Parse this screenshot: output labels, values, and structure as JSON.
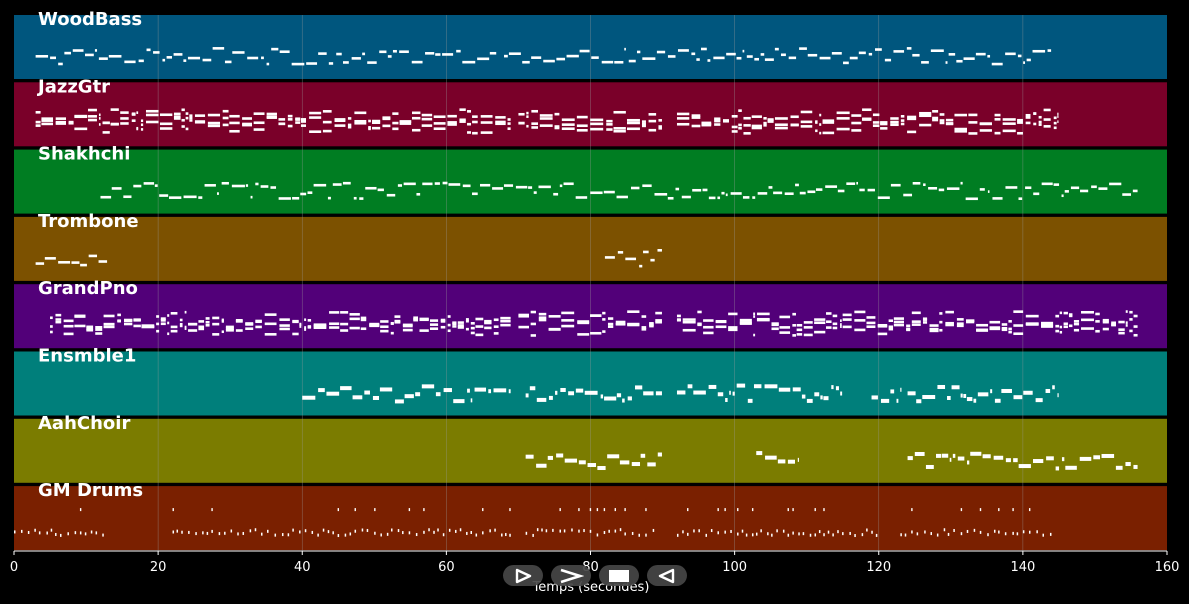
{
  "colors": {
    "background": "#000000",
    "note": "#ffffff",
    "grid": "#9a9a9a"
  },
  "tracks": [
    {
      "name": "WoodBass",
      "color": "#00567e"
    },
    {
      "name": "JazzGtr",
      "color": "#7a0029"
    },
    {
      "name": "Shakhchi",
      "color": "#007d22"
    },
    {
      "name": "Trombone",
      "color": "#7c5100"
    },
    {
      "name": "GrandPno",
      "color": "#520079"
    },
    {
      "name": "Ensmble1",
      "color": "#007f7b"
    },
    {
      "name": "AahChoir",
      "color": "#7b7c00"
    },
    {
      "name": "GM Drums",
      "color": "#7a2000"
    }
  ],
  "chart_data": {
    "type": "piano-roll",
    "xlabel": "Temps (secondes)",
    "xlim": [
      0,
      160
    ],
    "xticks": [
      0,
      20,
      40,
      60,
      80,
      100,
      120,
      140,
      160
    ],
    "grid": true,
    "series": [
      {
        "name": "WoodBass",
        "segments": [
          [
            3,
            67
          ],
          [
            68,
            144
          ]
        ]
      },
      {
        "name": "JazzGtr",
        "segments": [
          [
            3,
            69
          ],
          [
            70,
            90
          ],
          [
            92,
            145
          ]
        ]
      },
      {
        "name": "Shakhchi",
        "segments": [
          [
            12,
            156
          ]
        ]
      },
      {
        "name": "Trombone",
        "segments": [
          [
            3,
            13
          ],
          [
            82,
            90
          ]
        ]
      },
      {
        "name": "GrandPno",
        "segments": [
          [
            5,
            69
          ],
          [
            70,
            90
          ],
          [
            92,
            156
          ]
        ]
      },
      {
        "name": "Ensmble1",
        "segments": [
          [
            40,
            69
          ],
          [
            71,
            90
          ],
          [
            92,
            115
          ],
          [
            119,
            123
          ],
          [
            124,
            145
          ]
        ]
      },
      {
        "name": "AahChoir",
        "segments": [
          [
            71,
            90
          ],
          [
            103,
            109
          ],
          [
            124,
            156
          ]
        ]
      },
      {
        "name": "GM Drums",
        "segments": [
          [
            0,
            13
          ],
          [
            22,
            69
          ],
          [
            71,
            89
          ],
          [
            92,
            120
          ],
          [
            123,
            144
          ]
        ]
      }
    ]
  },
  "transport": {
    "play_icon": "play-icon",
    "forward_icon": "fast-forward-icon",
    "stop_icon": "stop-icon",
    "rewind_icon": "rewind-icon"
  }
}
